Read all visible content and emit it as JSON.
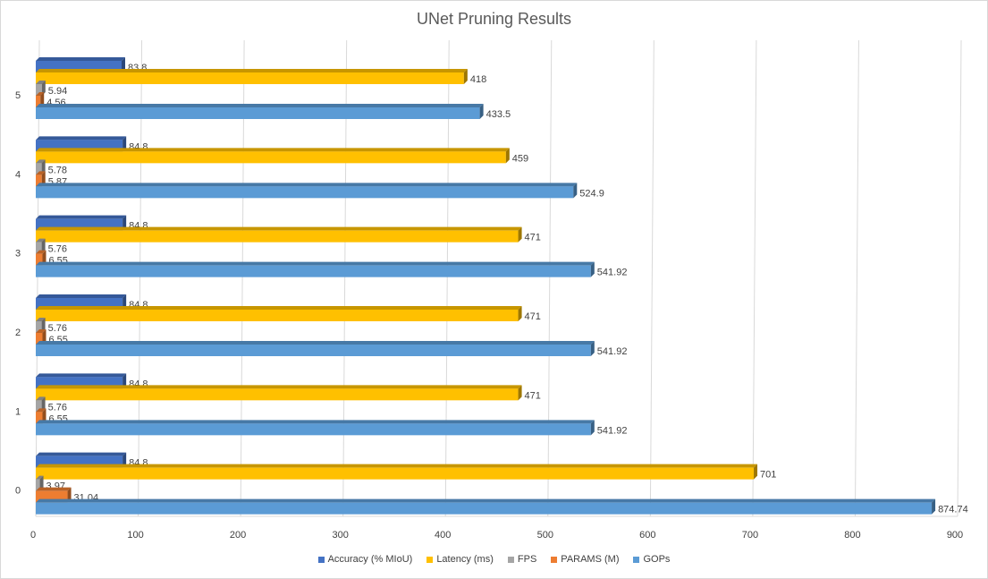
{
  "chart_data": {
    "type": "bar",
    "orientation": "horizontal",
    "title": "UNet Pruning Results",
    "categories": [
      "0",
      "1",
      "2",
      "3",
      "4",
      "5"
    ],
    "xlim": [
      0,
      900
    ],
    "xticks": [
      0,
      100,
      200,
      300,
      400,
      500,
      600,
      700,
      800,
      900
    ],
    "grid": true,
    "legend_position": "bottom",
    "series": [
      {
        "name": "Accuracy (% MIoU)",
        "color": "#4472c4",
        "values": [
          84.8,
          84.8,
          84.8,
          84.8,
          84.8,
          83.8
        ],
        "labels": [
          "84.8",
          "84.8",
          "84.8",
          "84.8",
          "84.8",
          "83.8"
        ]
      },
      {
        "name": "Latency (ms)",
        "color": "#ffc000",
        "values": [
          701,
          471,
          471,
          471,
          459,
          418
        ],
        "labels": [
          "701",
          "471",
          "471",
          "471",
          "459",
          "418"
        ]
      },
      {
        "name": "FPS",
        "color": "#a5a5a5",
        "values": [
          3.97,
          5.76,
          5.76,
          5.76,
          5.78,
          5.94
        ],
        "labels": [
          "3.97",
          "5.76",
          "5.76",
          "5.76",
          "5.78",
          "5.94"
        ]
      },
      {
        "name": "PARAMS (M)",
        "color": "#ed7d31",
        "values": [
          31.04,
          6.55,
          6.55,
          6.55,
          5.87,
          4.56
        ],
        "labels": [
          "31.04",
          "6.55",
          "6.55",
          "6.55",
          "5.87",
          "4.56"
        ]
      },
      {
        "name": "GOPs",
        "color": "#5b9bd5",
        "values": [
          874.74,
          541.92,
          541.92,
          541.92,
          524.9,
          433.5
        ],
        "labels": [
          "874.74",
          "541.92",
          "541.92",
          "541.92",
          "524.9",
          "433.5"
        ]
      }
    ]
  }
}
